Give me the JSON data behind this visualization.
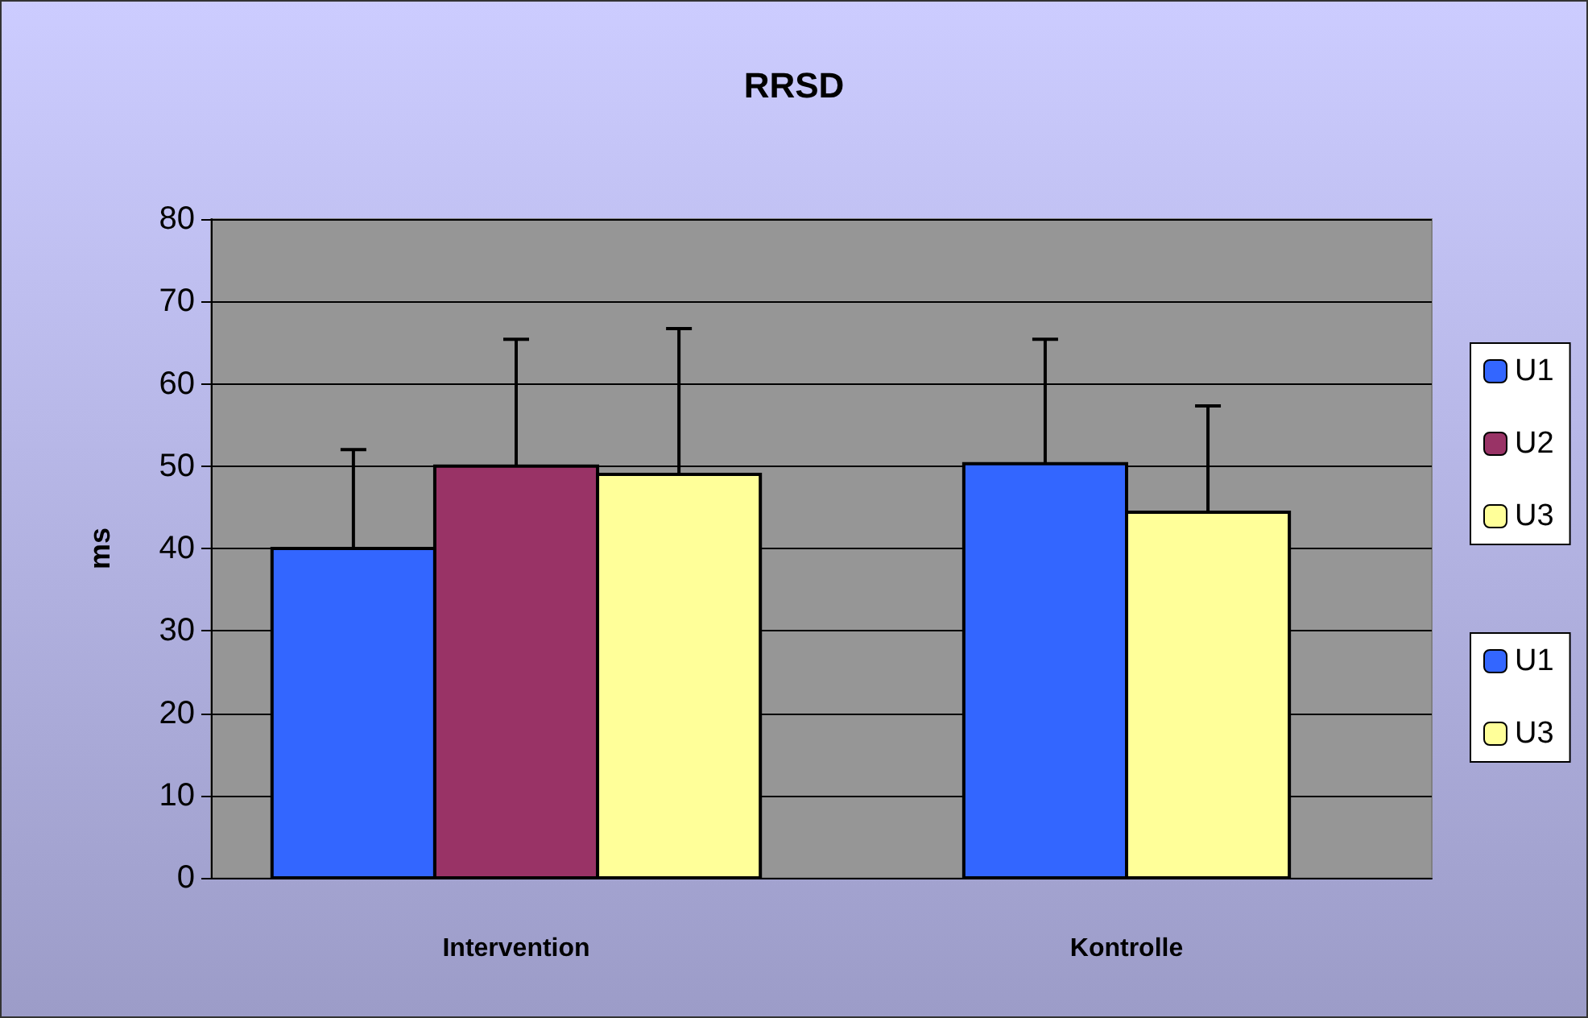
{
  "chart_data": {
    "type": "bar",
    "title": "RRSD",
    "ylabel": "ms",
    "categories": [
      "Intervention",
      "Kontrolle"
    ],
    "series": [
      {
        "name": "U1",
        "color": "#3366ff",
        "values": [
          40,
          null
        ],
        "errors": [
          [
            40,
            52
          ],
          null
        ]
      },
      {
        "name": "U2",
        "color": "#993366",
        "values": [
          50,
          null
        ],
        "errors": [
          [
            50,
            65.4
          ],
          null
        ]
      },
      {
        "name": "U3",
        "color": "#ffff99",
        "values": [
          49,
          null
        ],
        "errors": [
          [
            49,
            66.7
          ],
          null
        ]
      },
      {
        "name": "U1",
        "color": "#3366ff",
        "values": [
          null,
          50.3
        ],
        "errors": [
          null,
          [
            50.3,
            65.4
          ]
        ]
      },
      {
        "name": "U3",
        "color": "#ffff99",
        "values": [
          null,
          44.4
        ],
        "errors": [
          null,
          [
            44.4,
            57.3
          ]
        ]
      }
    ],
    "ylim": [
      0,
      80
    ],
    "yticks": [
      0,
      10,
      20,
      30,
      40,
      50,
      60,
      70,
      80
    ],
    "grid": "y",
    "legend": "right"
  }
}
